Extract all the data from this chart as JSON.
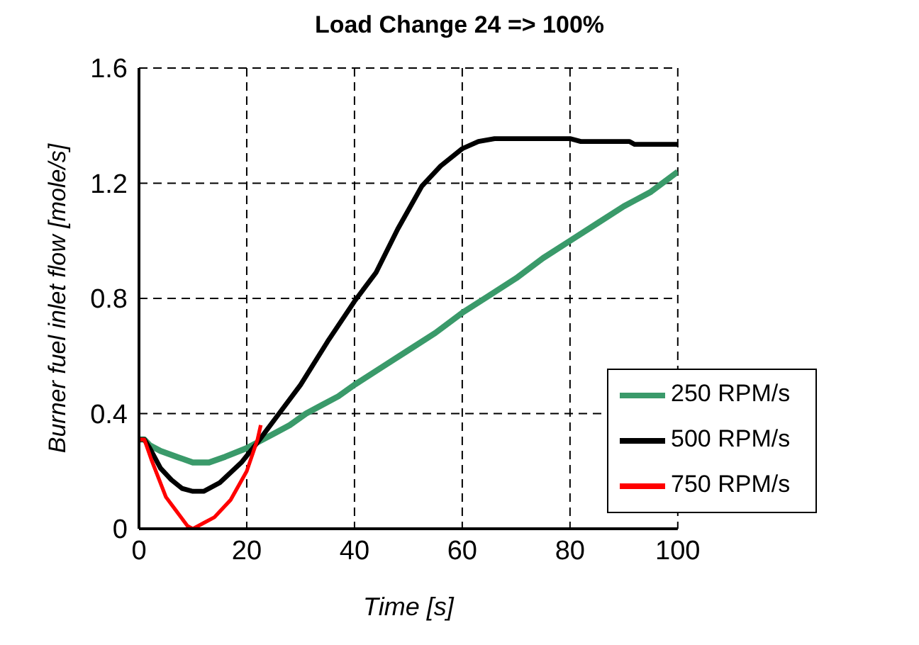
{
  "chart_data": {
    "type": "line",
    "title": "Load Change 24 => 100%",
    "xlabel": "Time [s]",
    "ylabel": "Burner fuel inlet flow [mole/s]",
    "xlim": [
      0,
      100
    ],
    "xticks": [
      0,
      20,
      40,
      60,
      80,
      100
    ],
    "ylim": [
      0,
      1.6
    ],
    "yticks": [
      0,
      0.4,
      0.8,
      1.2,
      1.6
    ],
    "grid": true,
    "legend": "bottom right",
    "marker": "none",
    "line_style": "solid",
    "series": [
      {
        "name": "250 RPM/s",
        "color": "#3a9a6a",
        "x": [
          0,
          1,
          2,
          4,
          7,
          10,
          13,
          16,
          20,
          22,
          25,
          28,
          31,
          34,
          37,
          40,
          45,
          50,
          55,
          60,
          65,
          70,
          75,
          80,
          85,
          90,
          92,
          95,
          100
        ],
        "values": [
          0.31,
          0.31,
          0.29,
          0.27,
          0.25,
          0.23,
          0.23,
          0.25,
          0.28,
          0.3,
          0.33,
          0.36,
          0.4,
          0.43,
          0.46,
          0.5,
          0.56,
          0.62,
          0.68,
          0.75,
          0.81,
          0.87,
          0.94,
          1.0,
          1.06,
          1.12,
          1.14,
          1.17,
          1.24
        ]
      },
      {
        "name": "500 RPM/s",
        "color": "#000000",
        "x": [
          0,
          1,
          2,
          4,
          6,
          8,
          10,
          12,
          15,
          19,
          22,
          26,
          30,
          35,
          40,
          44,
          48,
          52.5,
          56,
          60,
          63,
          66,
          70,
          75,
          80,
          82,
          91,
          92,
          100
        ],
        "values": [
          0.31,
          0.31,
          0.28,
          0.21,
          0.17,
          0.14,
          0.13,
          0.13,
          0.16,
          0.23,
          0.3,
          0.4,
          0.5,
          0.65,
          0.79,
          0.89,
          1.04,
          1.19,
          1.26,
          1.32,
          1.345,
          1.355,
          1.355,
          1.355,
          1.355,
          1.345,
          1.345,
          1.335,
          1.335
        ]
      },
      {
        "name": "750 RPM/s",
        "color": "#ff0000",
        "x": [
          0,
          1,
          2.3,
          5,
          7,
          9,
          10,
          12,
          14,
          17,
          20,
          22,
          22.6
        ],
        "values": [
          0.31,
          0.31,
          0.24,
          0.11,
          0.06,
          0.01,
          0.0,
          0.02,
          0.04,
          0.1,
          0.2,
          0.31,
          0.36
        ]
      }
    ]
  }
}
